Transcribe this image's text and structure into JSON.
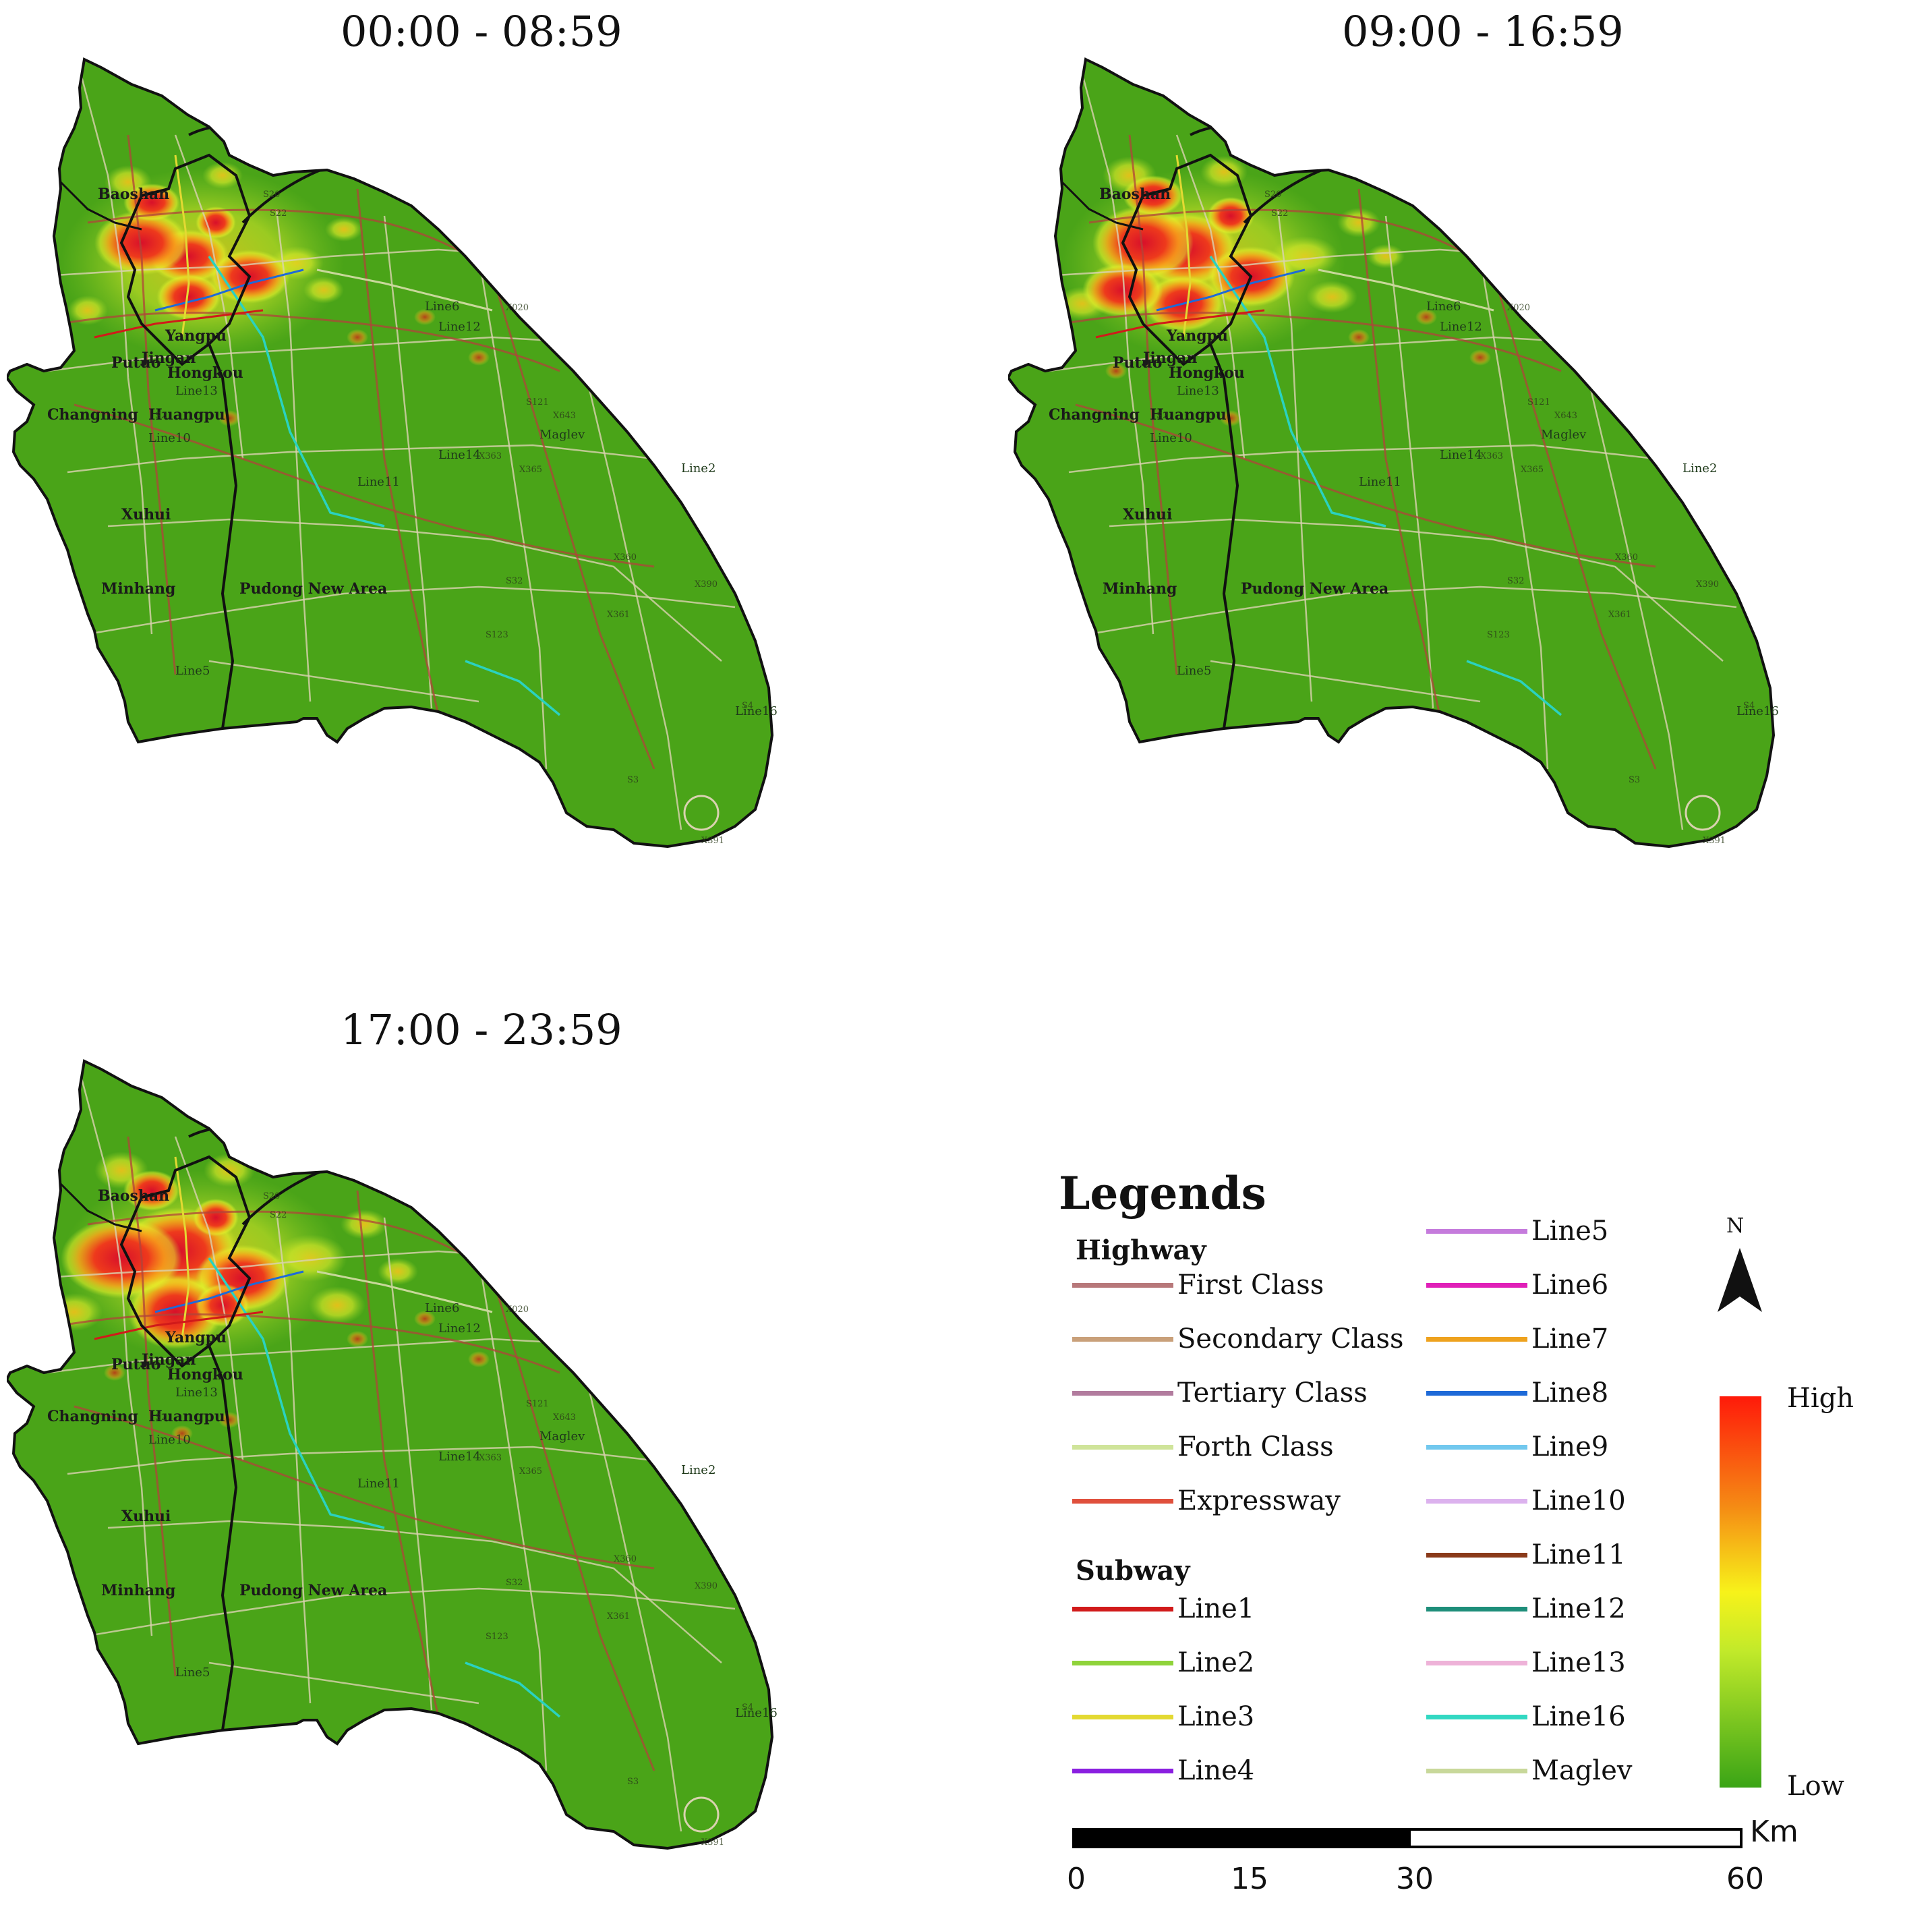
{
  "panels": [
    {
      "title": "00:00 - 08:59"
    },
    {
      "title": "09:00 - 16:59"
    },
    {
      "title": "17:00 - 23:59"
    }
  ],
  "map_labels": {
    "districts": [
      "Baoshan",
      "Yangpu",
      "Putuo",
      "Jingan",
      "Hongkou",
      "Changning",
      "Huangpu",
      "Xuhui",
      "Minhang",
      "Pudong New Area"
    ],
    "lines": [
      "Line12",
      "Line13",
      "Line10",
      "Line11",
      "Line5",
      "Line16",
      "Line6",
      "Line2",
      "Line14",
      "Maglev"
    ],
    "roads": [
      "S20",
      "S22",
      "X020",
      "S121",
      "X643",
      "X363",
      "X365",
      "S32",
      "X390",
      "X391",
      "S2",
      "S3",
      "S4",
      "S123",
      "X360",
      "X361"
    ]
  },
  "legend": {
    "title": "Legends",
    "highway_head": "Highway",
    "subway_head": "Subway",
    "highway": [
      {
        "label": "First Class",
        "color": "#b7787a"
      },
      {
        "label": "Secondary Class",
        "color": "#c9a07a"
      },
      {
        "label": "Tertiary Class",
        "color": "#b27c9e"
      },
      {
        "label": "Forth Class",
        "color": "#cfe49a"
      },
      {
        "label": "Expressway",
        "color": "#e0503c"
      }
    ],
    "subway_left": [
      {
        "label": "Line1",
        "color": "#d11a1a"
      },
      {
        "label": "Line2",
        "color": "#8fd33a"
      },
      {
        "label": "Line3",
        "color": "#e3d932"
      },
      {
        "label": "Line4",
        "color": "#8a1ee0"
      }
    ],
    "subway_right": [
      {
        "label": "Line5",
        "color": "#c57bdc"
      },
      {
        "label": "Line6",
        "color": "#e020b8"
      },
      {
        "label": "Line7",
        "color": "#eea21e"
      },
      {
        "label": "Line8",
        "color": "#1e6ad8"
      },
      {
        "label": "Line9",
        "color": "#72c8ee"
      },
      {
        "label": "Line10",
        "color": "#dcb2ee"
      },
      {
        "label": "Line11",
        "color": "#8a3a1a"
      },
      {
        "label": "Line12",
        "color": "#1e8e7a"
      },
      {
        "label": "Line13",
        "color": "#eeb2d8"
      },
      {
        "label": "Line16",
        "color": "#32d8c2"
      },
      {
        "label": "Maglev",
        "color": "#c8d89a"
      }
    ],
    "north": "N",
    "ramp_high": "High",
    "ramp_low": "Low",
    "scale": {
      "ticks": [
        "0",
        "15",
        "30",
        "60"
      ],
      "unit": "Km"
    }
  }
}
